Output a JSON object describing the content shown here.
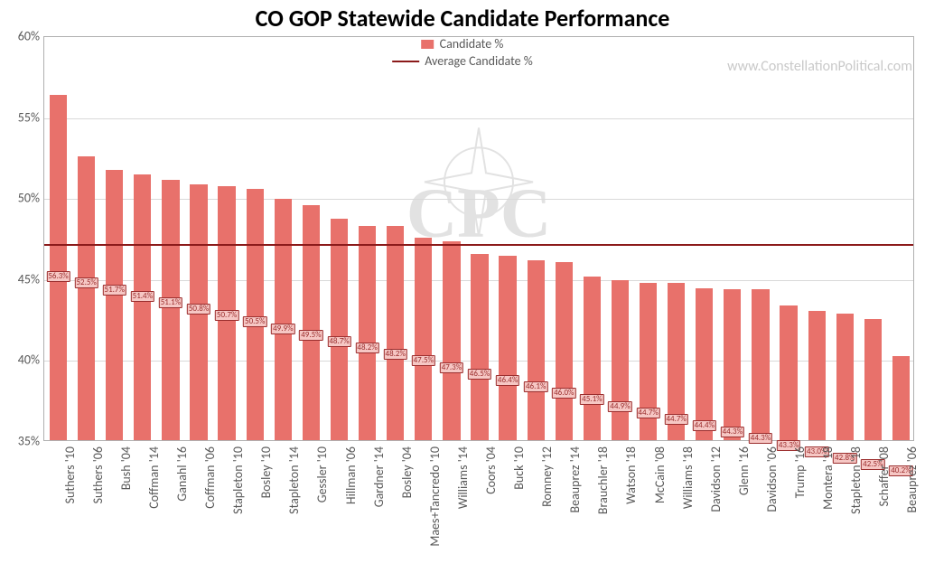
{
  "title": {
    "text": "CO GOP Statewide Candidate Performance",
    "fontsize": 26
  },
  "watermark_url": "www.ConstellationPolitical.com",
  "watermark_logo_text": "CPC",
  "chart": {
    "type": "bar",
    "background_color": "#ffffff",
    "plot_border_color": "#b0b0b0",
    "grid_color": "#d9d9d9",
    "y_axis": {
      "min": 35,
      "max": 60,
      "tick_step": 5,
      "tick_suffix": "%",
      "label_color": "#595959",
      "label_fontsize": 14
    },
    "x_axis": {
      "label_rotation": -90,
      "label_color": "#595959",
      "label_fontsize": 14
    },
    "bar_color": "#e8716b",
    "bar_width_ratio": 0.62,
    "data_label": {
      "fontsize": 9,
      "text_color": "#9b2e2e",
      "fill_color": "#f6c7c4",
      "border_color": "#9b2e2e",
      "y_value": 45.2,
      "step_down_pct": 0.4
    },
    "average_line": {
      "value": 47.2,
      "color": "#8b1a1a",
      "width": 2
    },
    "legend": {
      "series_label": "Candidate %",
      "avg_label": "Average Candidate %",
      "fontsize": 14,
      "text_color": "#595959"
    },
    "categories": [
      "Suthers '10",
      "Suthers '06",
      "Bush '04",
      "Coffman '14",
      "Ganahl '16",
      "Coffman '06",
      "Stapleton '10",
      "Bosley '10",
      "Stapleton '14",
      "Gessler '10",
      "Hillman '06",
      "Gardner '14",
      "Bosley '04",
      "Maes+Tancredo '10",
      "Williams '14",
      "Coors '04",
      "Buck '10",
      "Romney '12",
      "Beauprez '14",
      "Brauchler '18",
      "Watson '18",
      "McCain '08",
      "Williams '18",
      "Davidson '12",
      "Glenn '16",
      "Davidson '06",
      "Trump '16",
      "Montera '18",
      "Stapleton '18",
      "Schaffer '08",
      "Beauprez '06"
    ],
    "values": [
      56.3,
      52.5,
      51.7,
      51.4,
      51.1,
      50.8,
      50.7,
      50.5,
      49.9,
      49.5,
      48.7,
      48.2,
      48.2,
      47.5,
      47.3,
      46.5,
      46.4,
      46.1,
      46.0,
      45.1,
      44.9,
      44.7,
      44.7,
      44.4,
      44.3,
      44.3,
      43.3,
      43.0,
      42.8,
      42.5,
      40.2
    ]
  }
}
